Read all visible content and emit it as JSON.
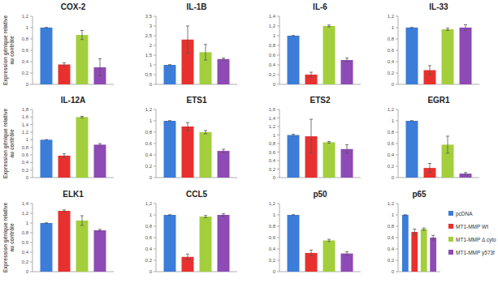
{
  "chart_data": [
    {
      "type": "bar",
      "title": "COX-2",
      "ylabel": "Expression génique relative au contrôle",
      "categories": [
        null
      ],
      "tick_labels": "y",
      "ylim": [
        0,
        1.2
      ],
      "yticks": [
        0,
        {
          "value": 0.2,
          "label": "0,2"
        },
        {
          "value": 0.4,
          "label": "0,4"
        },
        {
          "value": 0.6,
          "label": "0,6"
        },
        {
          "value": 0.8,
          "label": "0,8"
        },
        1,
        {
          "value": 1.2,
          "label": "1,2"
        }
      ],
      "series": [
        {
          "name": "pcDNA",
          "color": "#3b7dd8",
          "values": [
            1
          ],
          "errors": [
            0
          ]
        },
        {
          "name": "MT1-MMP Wt",
          "color": "#e8312f",
          "values": [
            0.35
          ],
          "errors": [
            0.03
          ]
        },
        {
          "name": "MT1-MMP Δ cyto",
          "color": "#a3cf3c",
          "values": [
            0.87
          ],
          "errors": [
            0.08
          ]
        },
        {
          "name": "MT1-MMP y573f",
          "color": "#8e4ab5",
          "values": [
            0.3
          ],
          "errors": [
            0.15
          ]
        }
      ]
    },
    {
      "type": "bar",
      "title": "IL-1B",
      "categories": [
        null
      ],
      "tick_labels": "y",
      "ylim": [
        0,
        3.5
      ],
      "yticks": [
        0,
        {
          "value": 0.5,
          "label": "0,5"
        },
        1,
        {
          "value": 1.5,
          "label": "1,5"
        },
        2,
        {
          "value": 2.5,
          "label": "2,5"
        },
        3,
        {
          "value": 3.5,
          "label": "3,5"
        }
      ],
      "series": [
        {
          "name": "pcDNA",
          "color": "#3b7dd8",
          "values": [
            1
          ],
          "errors": [
            0
          ]
        },
        {
          "name": "MT1-MMP Wt",
          "color": "#e8312f",
          "values": [
            2.3
          ],
          "errors": [
            0.7
          ]
        },
        {
          "name": "MT1-MMP Δ cyto",
          "color": "#a3cf3c",
          "values": [
            1.65
          ],
          "errors": [
            0.4
          ]
        },
        {
          "name": "MT1-MMP y573f",
          "color": "#8e4ab5",
          "values": [
            1.3
          ],
          "errors": [
            0.05
          ]
        }
      ]
    },
    {
      "type": "bar",
      "title": "IL-6",
      "categories": [
        null
      ],
      "tick_labels": "y",
      "ylim": [
        0,
        1.4
      ],
      "yticks": [
        0,
        {
          "value": 0.2,
          "label": "0,2"
        },
        {
          "value": 0.4,
          "label": "0,4"
        },
        {
          "value": 0.6,
          "label": "0,6"
        },
        {
          "value": 0.8,
          "label": "0,8"
        },
        1,
        {
          "value": 1.2,
          "label": "1,2"
        },
        {
          "value": 1.4,
          "label": "1,4"
        }
      ],
      "series": [
        {
          "name": "pcDNA",
          "color": "#3b7dd8",
          "values": [
            1
          ],
          "errors": [
            0
          ]
        },
        {
          "name": "MT1-MMP Wt",
          "color": "#e8312f",
          "values": [
            0.2
          ],
          "errors": [
            0.05
          ]
        },
        {
          "name": "MT1-MMP Δ cyto",
          "color": "#a3cf3c",
          "values": [
            1.2
          ],
          "errors": [
            0.02
          ]
        },
        {
          "name": "MT1-MMP y573f",
          "color": "#8e4ab5",
          "values": [
            0.5
          ],
          "errors": [
            0.04
          ]
        }
      ]
    },
    {
      "type": "bar",
      "title": "IL-33",
      "categories": [
        null
      ],
      "tick_labels": "y",
      "ylim": [
        0,
        1.2
      ],
      "yticks": [
        0,
        {
          "value": 0.2,
          "label": "0,2"
        },
        {
          "value": 0.4,
          "label": "0,4"
        },
        {
          "value": 0.6,
          "label": "0,6"
        },
        {
          "value": 0.8,
          "label": "0,8"
        },
        1,
        {
          "value": 1.2,
          "label": "1,2"
        }
      ],
      "series": [
        {
          "name": "pcDNA",
          "color": "#3b7dd8",
          "values": [
            1
          ],
          "errors": [
            0
          ]
        },
        {
          "name": "MT1-MMP Wt",
          "color": "#e8312f",
          "values": [
            0.25
          ],
          "errors": [
            0.08
          ]
        },
        {
          "name": "MT1-MMP Δ cyto",
          "color": "#a3cf3c",
          "values": [
            0.97
          ],
          "errors": [
            0.02
          ]
        },
        {
          "name": "MT1-MMP y573f",
          "color": "#8e4ab5",
          "values": [
            1
          ],
          "errors": [
            0.05
          ]
        }
      ]
    },
    {
      "type": "bar",
      "title": "IL-12A",
      "ylabel": "Expression génique relative au contrôle",
      "categories": [
        null
      ],
      "tick_labels": "y",
      "ylim": [
        0,
        1.8
      ],
      "yticks": [
        0,
        {
          "value": 0.2,
          "label": "0,2"
        },
        {
          "value": 0.4,
          "label": "0,4"
        },
        {
          "value": 0.6,
          "label": "0,6"
        },
        {
          "value": 0.8,
          "label": "0,8"
        },
        1,
        {
          "value": 1.2,
          "label": "1,2"
        },
        {
          "value": 1.4,
          "label": "1,4"
        },
        {
          "value": 1.6,
          "label": "1,6"
        },
        {
          "value": 1.8,
          "label": "1,8"
        }
      ],
      "series": [
        {
          "name": "pcDNA",
          "color": "#3b7dd8",
          "values": [
            1
          ],
          "errors": [
            0
          ]
        },
        {
          "name": "MT1-MMP Wt",
          "color": "#e8312f",
          "values": [
            0.58
          ],
          "errors": [
            0.05
          ]
        },
        {
          "name": "MT1-MMP Δ cyto",
          "color": "#a3cf3c",
          "values": [
            1.6
          ],
          "errors": [
            0.02
          ]
        },
        {
          "name": "MT1-MMP y573f",
          "color": "#8e4ab5",
          "values": [
            0.87
          ],
          "errors": [
            0.03
          ]
        }
      ]
    },
    {
      "type": "bar",
      "title": "ETS1",
      "categories": [
        null
      ],
      "tick_labels": "y",
      "ylim": [
        0,
        1.2
      ],
      "yticks": [
        0,
        {
          "value": 0.2,
          "label": "0,2"
        },
        {
          "value": 0.4,
          "label": "0,4"
        },
        {
          "value": 0.6,
          "label": "0,6"
        },
        {
          "value": 0.8,
          "label": "0,8"
        },
        1,
        {
          "value": 1.2,
          "label": "1,2"
        }
      ],
      "series": [
        {
          "name": "pcDNA",
          "color": "#3b7dd8",
          "values": [
            1
          ],
          "errors": [
            0
          ]
        },
        {
          "name": "MT1-MMP Wt",
          "color": "#e8312f",
          "values": [
            0.9
          ],
          "errors": [
            0.07
          ]
        },
        {
          "name": "MT1-MMP Δ cyto",
          "color": "#a3cf3c",
          "values": [
            0.8
          ],
          "errors": [
            0.03
          ]
        },
        {
          "name": "MT1-MMP y573f",
          "color": "#8e4ab5",
          "values": [
            0.47
          ],
          "errors": [
            0.03
          ]
        }
      ]
    },
    {
      "type": "bar",
      "title": "ETS2",
      "categories": [
        null
      ],
      "tick_labels": "y",
      "ylim": [
        0,
        1.6
      ],
      "yticks": [
        0,
        {
          "value": 0.2,
          "label": "0,2"
        },
        {
          "value": 0.4,
          "label": "0,4"
        },
        {
          "value": 0.6,
          "label": "0,6"
        },
        {
          "value": 0.8,
          "label": "0,8"
        },
        1,
        {
          "value": 1.2,
          "label": "1,2"
        },
        {
          "value": 1.4,
          "label": "1,4"
        },
        {
          "value": 1.6,
          "label": "1,6"
        }
      ],
      "series": [
        {
          "name": "pcDNA",
          "color": "#3b7dd8",
          "values": [
            1
          ],
          "errors": [
            0.02
          ]
        },
        {
          "name": "MT1-MMP Wt",
          "color": "#e8312f",
          "values": [
            0.97
          ],
          "errors": [
            0.4
          ]
        },
        {
          "name": "MT1-MMP Δ cyto",
          "color": "#a3cf3c",
          "values": [
            0.83
          ],
          "errors": [
            0.02
          ]
        },
        {
          "name": "MT1-MMP y573f",
          "color": "#8e4ab5",
          "values": [
            0.67
          ],
          "errors": [
            0.1
          ]
        }
      ]
    },
    {
      "type": "bar",
      "title": "EGR1",
      "categories": [
        null
      ],
      "tick_labels": "y",
      "ylim": [
        0,
        1.2
      ],
      "yticks": [
        0,
        {
          "value": 0.2,
          "label": "0,2"
        },
        {
          "value": 0.4,
          "label": "0,4"
        },
        {
          "value": 0.6,
          "label": "0,6"
        },
        {
          "value": 0.8,
          "label": "0,8"
        },
        1,
        {
          "value": 1.2,
          "label": "1,2"
        }
      ],
      "series": [
        {
          "name": "pcDNA",
          "color": "#3b7dd8",
          "values": [
            1
          ],
          "errors": [
            0
          ]
        },
        {
          "name": "MT1-MMP Wt",
          "color": "#e8312f",
          "values": [
            0.17
          ],
          "errors": [
            0.08
          ]
        },
        {
          "name": "MT1-MMP Δ cyto",
          "color": "#a3cf3c",
          "values": [
            0.58
          ],
          "errors": [
            0.15
          ]
        },
        {
          "name": "MT1-MMP y573f",
          "color": "#8e4ab5",
          "values": [
            0.07
          ],
          "errors": [
            0.02
          ]
        }
      ]
    },
    {
      "type": "bar",
      "title": "ELK1",
      "ylabel": "Expression génique relative au contrôle",
      "categories": [
        null
      ],
      "tick_labels": "y",
      "ylim": [
        0,
        1.4
      ],
      "yticks": [
        0,
        {
          "value": 0.2,
          "label": "0,2"
        },
        {
          "value": 0.4,
          "label": "0,4"
        },
        {
          "value": 0.6,
          "label": "0,6"
        },
        {
          "value": 0.8,
          "label": "0,8"
        },
        1,
        {
          "value": 1.2,
          "label": "1,2"
        },
        {
          "value": 1.4,
          "label": "1,4"
        }
      ],
      "series": [
        {
          "name": "pcDNA",
          "color": "#3b7dd8",
          "values": [
            1
          ],
          "errors": [
            0
          ]
        },
        {
          "name": "MT1-MMP Wt",
          "color": "#e8312f",
          "values": [
            1.25
          ],
          "errors": [
            0.02
          ]
        },
        {
          "name": "MT1-MMP Δ cyto",
          "color": "#a3cf3c",
          "values": [
            1.05
          ],
          "errors": [
            0.1
          ]
        },
        {
          "name": "MT1-MMP y573f",
          "color": "#8e4ab5",
          "values": [
            0.85
          ],
          "errors": [
            0.02
          ]
        }
      ]
    },
    {
      "type": "bar",
      "title": "CCL5",
      "categories": [
        null
      ],
      "tick_labels": "y",
      "ylim": [
        0,
        1.2
      ],
      "yticks": [
        0,
        {
          "value": 0.2,
          "label": "0,2"
        },
        {
          "value": 0.4,
          "label": "0,4"
        },
        {
          "value": 0.6,
          "label": "0,6"
        },
        {
          "value": 0.8,
          "label": "0,8"
        },
        1,
        {
          "value": 1.2,
          "label": "1,2"
        }
      ],
      "series": [
        {
          "name": "pcDNA",
          "color": "#3b7dd8",
          "values": [
            1
          ],
          "errors": [
            0
          ]
        },
        {
          "name": "MT1-MMP Wt",
          "color": "#e8312f",
          "values": [
            0.26
          ],
          "errors": [
            0.05
          ]
        },
        {
          "name": "MT1-MMP Δ cyto",
          "color": "#a3cf3c",
          "values": [
            0.97
          ],
          "errors": [
            0.02
          ]
        },
        {
          "name": "MT1-MMP y573f",
          "color": "#8e4ab5",
          "values": [
            1
          ],
          "errors": [
            0.02
          ]
        }
      ]
    },
    {
      "type": "bar",
      "title": "p50",
      "categories": [
        null
      ],
      "tick_labels": "y",
      "ylim": [
        0,
        1.2
      ],
      "yticks": [
        0,
        {
          "value": 0.2,
          "label": "0,2"
        },
        {
          "value": 0.4,
          "label": "0,4"
        },
        {
          "value": 0.6,
          "label": "0,6"
        },
        {
          "value": 0.8,
          "label": "0,8"
        },
        1,
        {
          "value": 1.2,
          "label": "1,2"
        }
      ],
      "series": [
        {
          "name": "pcDNA",
          "color": "#3b7dd8",
          "values": [
            1
          ],
          "errors": [
            0
          ]
        },
        {
          "name": "MT1-MMP Wt",
          "color": "#e8312f",
          "values": [
            0.33
          ],
          "errors": [
            0.05
          ]
        },
        {
          "name": "MT1-MMP Δ cyto",
          "color": "#a3cf3c",
          "values": [
            0.55
          ],
          "errors": [
            0.02
          ]
        },
        {
          "name": "MT1-MMP y573f",
          "color": "#8e4ab5",
          "values": [
            0.32
          ],
          "errors": [
            0.03
          ]
        }
      ]
    },
    {
      "type": "bar",
      "title": "p65",
      "legend": "right",
      "categories": [
        null
      ],
      "tick_labels": "y",
      "ylim": [
        0,
        1.2
      ],
      "yticks": [
        0,
        {
          "value": 0.2,
          "label": "0,2"
        },
        {
          "value": 0.4,
          "label": "0,4"
        },
        {
          "value": 0.6,
          "label": "0,6"
        },
        {
          "value": 0.8,
          "label": "0,8"
        },
        1,
        {
          "value": 1.2,
          "label": "1,2"
        }
      ],
      "series": [
        {
          "name": "pcDNA",
          "color": "#3b7dd8",
          "values": [
            1
          ],
          "errors": [
            0
          ]
        },
        {
          "name": "MT1-MMP Wt",
          "color": "#e8312f",
          "values": [
            0.7
          ],
          "errors": [
            0.05
          ]
        },
        {
          "name": "MT1-MMP Δ cyto",
          "color": "#a3cf3c",
          "values": [
            0.75
          ],
          "errors": [
            0.02
          ]
        },
        {
          "name": "MT1-MMP y573f",
          "color": "#8e4ab5",
          "values": [
            0.6
          ],
          "errors": [
            0.04
          ]
        }
      ]
    }
  ]
}
